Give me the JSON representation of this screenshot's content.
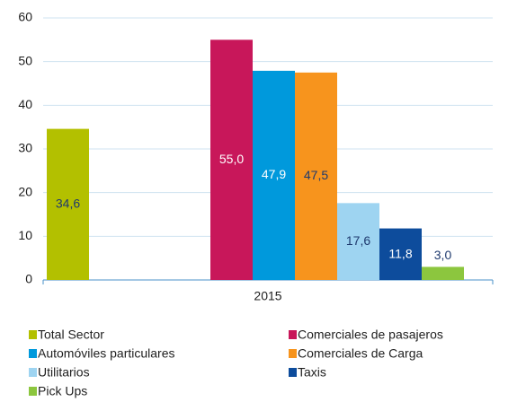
{
  "chart_data": {
    "type": "bar",
    "categories": [
      "2015"
    ],
    "series": [
      {
        "name": "Total Sector",
        "color": "#b3c000",
        "label_color": "#1f3a6e",
        "values": [
          34.6
        ],
        "value_labels": [
          "34,6"
        ]
      },
      {
        "name": "Comerciales de pasajeros",
        "color": "#c8175a",
        "label_color": "#ffffff",
        "values": [
          55.0
        ],
        "value_labels": [
          "55,0"
        ]
      },
      {
        "name": "Automóviles particulares",
        "color": "#0099dc",
        "label_color": "#ffffff",
        "values": [
          47.9
        ],
        "value_labels": [
          "47,9"
        ]
      },
      {
        "name": "Comerciales de Carga",
        "color": "#f7941d",
        "label_color": "#1f3a6e",
        "values": [
          47.5
        ],
        "value_labels": [
          "47,5"
        ]
      },
      {
        "name": "Utilitarios",
        "color": "#9ed4f1",
        "label_color": "#1f3a6e",
        "values": [
          17.6
        ],
        "value_labels": [
          "17,6"
        ]
      },
      {
        "name": "Taxis",
        "color": "#0d4c9c",
        "label_color": "#ffffff",
        "values": [
          11.8
        ],
        "value_labels": [
          "11,8"
        ]
      },
      {
        "name": "Pick Ups",
        "color": "#8cc63e",
        "label_color": "#1f3a6e",
        "values": [
          3.0
        ],
        "value_labels": [
          "3,0"
        ]
      }
    ],
    "ylim": [
      0,
      60
    ],
    "yticks": [
      0,
      10,
      20,
      30,
      40,
      50,
      60
    ],
    "grid": true,
    "legend": "bottom"
  }
}
